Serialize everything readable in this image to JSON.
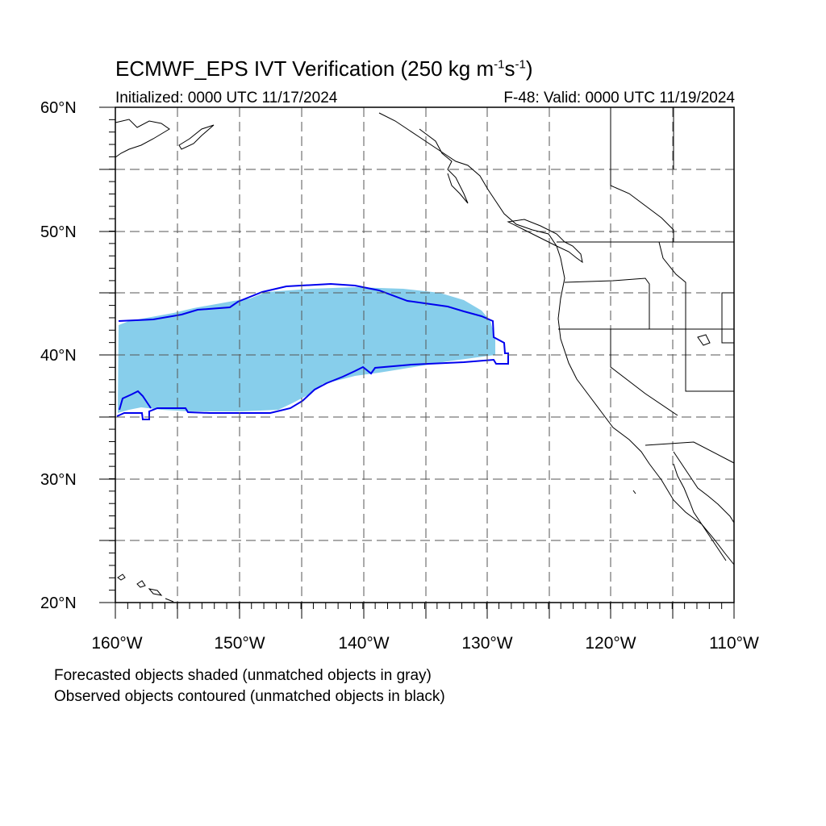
{
  "title": {
    "main": "ECMWF_EPS IVT Verification (250 kg m",
    "sup1": "-1",
    "mid": "s",
    "sup2": "-1",
    "end": ")"
  },
  "subtitle_left": "Initialized: 0000 UTC 11/17/2024",
  "subtitle_right": "F-48: Valid: 0000 UTC 11/19/2024",
  "lat_labels": [
    "60°N",
    "50°N",
    "40°N",
    "30°N",
    "20°N"
  ],
  "lon_labels": [
    "160°W",
    "150°W",
    "140°W",
    "130°W",
    "120°W",
    "110°W"
  ],
  "notes": [
    "Forecasted objects shaded (unmatched objects in gray)",
    "Observed objects contoured (unmatched objects in black)"
  ],
  "colors": {
    "forecast_fill": "#87ceeb",
    "observed_contour": "#0000ee",
    "grid": "#555555",
    "coast": "#000000"
  },
  "map_extent": {
    "lon_min": -160,
    "lon_max": -110,
    "lat_min": 20,
    "lat_max": 60
  }
}
